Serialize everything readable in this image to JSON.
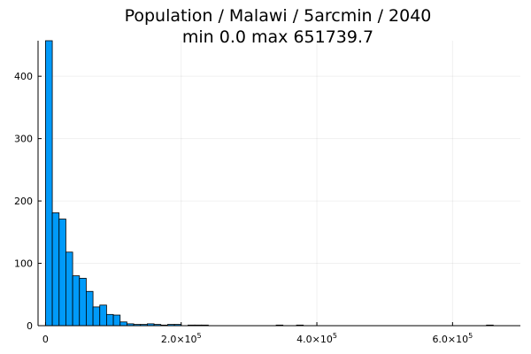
{
  "chart_data": {
    "type": "bar",
    "title": "Population / Malawi / 5arcmin / 2040",
    "subtitle": "min 0.0  max 651739.7",
    "xlabel": "",
    "ylabel": "",
    "bin_width": 10000,
    "xlim": [
      -11000,
      700000
    ],
    "ylim": [
      0,
      457
    ],
    "x_ticks": [
      {
        "value": 0,
        "label": "0",
        "exp": ""
      },
      {
        "value": 200000,
        "label": "2.0×10",
        "exp": "5"
      },
      {
        "value": 400000,
        "label": "4.0×10",
        "exp": "5"
      },
      {
        "value": 600000,
        "label": "6.0×10",
        "exp": "5"
      }
    ],
    "y_ticks": [
      0,
      100,
      200,
      300,
      400
    ],
    "grid": true,
    "legend": "none",
    "colors": {
      "bar_fill": "#009af9",
      "bar_edge": "#000000"
    },
    "bins": [
      {
        "x0": 0,
        "count": 457
      },
      {
        "x0": 10000,
        "count": 181
      },
      {
        "x0": 20000,
        "count": 171
      },
      {
        "x0": 30000,
        "count": 118
      },
      {
        "x0": 40000,
        "count": 80
      },
      {
        "x0": 50000,
        "count": 76
      },
      {
        "x0": 60000,
        "count": 55
      },
      {
        "x0": 70000,
        "count": 30
      },
      {
        "x0": 80000,
        "count": 33
      },
      {
        "x0": 90000,
        "count": 18
      },
      {
        "x0": 100000,
        "count": 17
      },
      {
        "x0": 110000,
        "count": 6
      },
      {
        "x0": 120000,
        "count": 3
      },
      {
        "x0": 130000,
        "count": 2
      },
      {
        "x0": 140000,
        "count": 2
      },
      {
        "x0": 150000,
        "count": 3
      },
      {
        "x0": 160000,
        "count": 2
      },
      {
        "x0": 170000,
        "count": 1
      },
      {
        "x0": 180000,
        "count": 2
      },
      {
        "x0": 190000,
        "count": 2
      },
      {
        "x0": 200000,
        "count": 0
      },
      {
        "x0": 210000,
        "count": 1
      },
      {
        "x0": 220000,
        "count": 1
      },
      {
        "x0": 230000,
        "count": 1
      },
      {
        "x0": 340000,
        "count": 1
      },
      {
        "x0": 370000,
        "count": 1
      },
      {
        "x0": 650000,
        "count": 1
      }
    ]
  }
}
